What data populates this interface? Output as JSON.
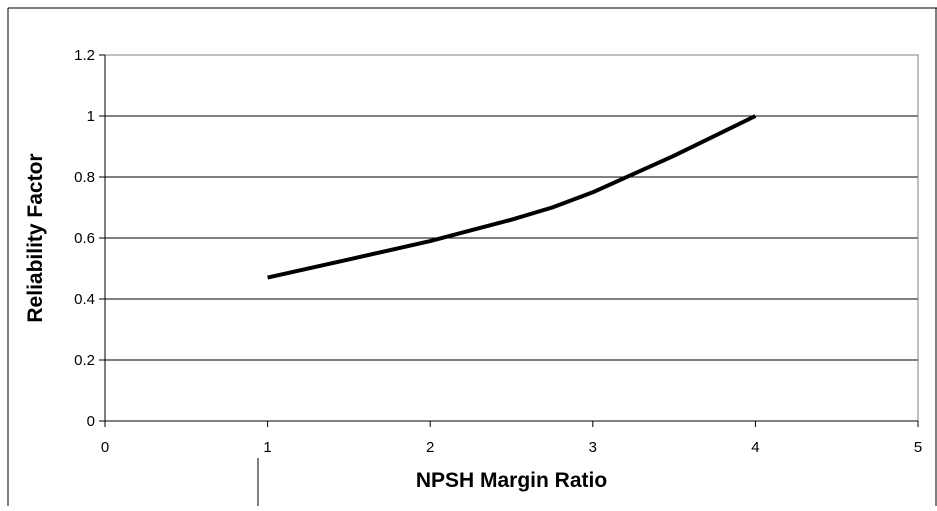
{
  "chart_data": {
    "type": "line",
    "title": "",
    "xlabel": "NPSH Margin Ratio",
    "ylabel": "Reliability Factor",
    "xlim": [
      0,
      5
    ],
    "ylim": [
      0,
      1.2
    ],
    "x_ticks": [
      "0",
      "1",
      "2",
      "3",
      "4",
      "5"
    ],
    "y_ticks": [
      "0",
      "0.2",
      "0.4",
      "0.6",
      "0.8",
      "1",
      "1.2"
    ],
    "grid": "horizontal",
    "legend": "none",
    "series": [
      {
        "x": [
          1,
          1.5,
          2,
          2.5,
          2.75,
          3,
          3.5,
          4
        ],
        "y": [
          0.47,
          0.53,
          0.59,
          0.66,
          0.7,
          0.75,
          0.87,
          1.0
        ],
        "color": "#000000"
      }
    ]
  }
}
